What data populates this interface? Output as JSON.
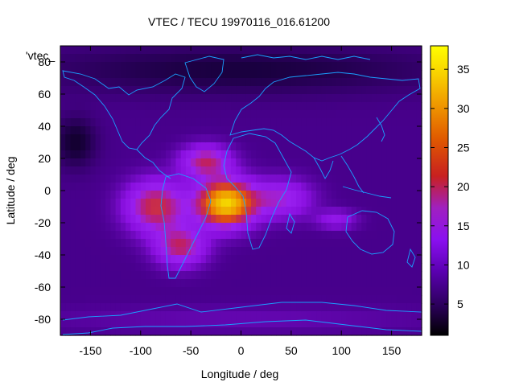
{
  "chart_data": {
    "type": "heatmap",
    "title": "VTEC / TECU 19970116_016.61200",
    "xlabel": "Longitude / deg",
    "ylabel": "Latitude / deg",
    "xlim": [
      -180,
      180
    ],
    "ylim": [
      -90,
      90
    ],
    "x_ticks": [
      -150,
      -100,
      -50,
      0,
      50,
      100,
      150
    ],
    "y_ticks": [
      80,
      60,
      40,
      20,
      0,
      -20,
      -40,
      -60,
      -80
    ],
    "colorbar": {
      "min": 1,
      "max": 38,
      "ticks": [
        5,
        10,
        15,
        20,
        25,
        30,
        35
      ]
    },
    "legend_label": "'vtec_",
    "grid": false,
    "max_value_approx": 37,
    "max_location": {
      "lon": -15,
      "lat": -8
    },
    "background_value_approx": 9,
    "colormap": [
      "#000000",
      "#1a0040",
      "#4a0090",
      "#8a10e0",
      "#9a20f0",
      "#c02060",
      "#e05010",
      "#f09000",
      "#f0c000",
      "#ffff00"
    ]
  }
}
